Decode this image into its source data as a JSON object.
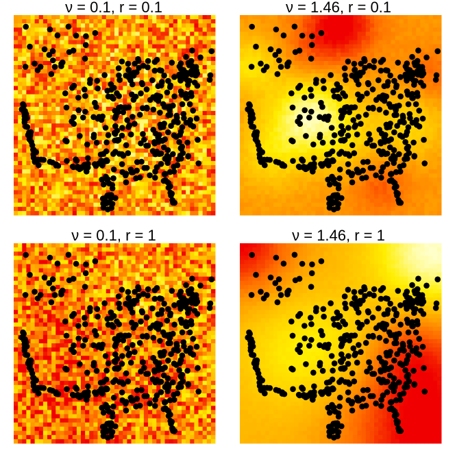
{
  "chart_data": [
    {
      "type": "heatmap",
      "title": "ν = 0.1, r = 0.1",
      "nu": 0.1,
      "r": 0.1,
      "colormap": [
        "#f00000",
        "#ff6a00",
        "#ffb400",
        "#ffee00",
        "#ffffcc"
      ],
      "points_color": "#000000",
      "axes": false,
      "grid": false,
      "legend": "none"
    },
    {
      "type": "heatmap",
      "title": "ν = 1.46, r = 0.1",
      "nu": 1.46,
      "r": 0.1,
      "colormap": [
        "#f00000",
        "#ff6a00",
        "#ffb400",
        "#ffee00",
        "#ffffcc"
      ],
      "points_color": "#000000",
      "axes": false,
      "grid": false,
      "legend": "none"
    },
    {
      "type": "heatmap",
      "title": "ν = 0.1, r = 1",
      "nu": 0.1,
      "r": 1,
      "colormap": [
        "#f00000",
        "#ff6a00",
        "#ffb400",
        "#ffee00",
        "#ffffcc"
      ],
      "points_color": "#000000",
      "axes": false,
      "grid": false,
      "legend": "none"
    },
    {
      "type": "heatmap",
      "title": "ν = 1.46, r = 1",
      "nu": 1.46,
      "r": 1,
      "colormap": [
        "#f00000",
        "#ff6a00",
        "#ffb400",
        "#ffee00",
        "#ffffcc"
      ],
      "points_color": "#000000",
      "axes": false,
      "grid": false,
      "legend": "none"
    }
  ]
}
